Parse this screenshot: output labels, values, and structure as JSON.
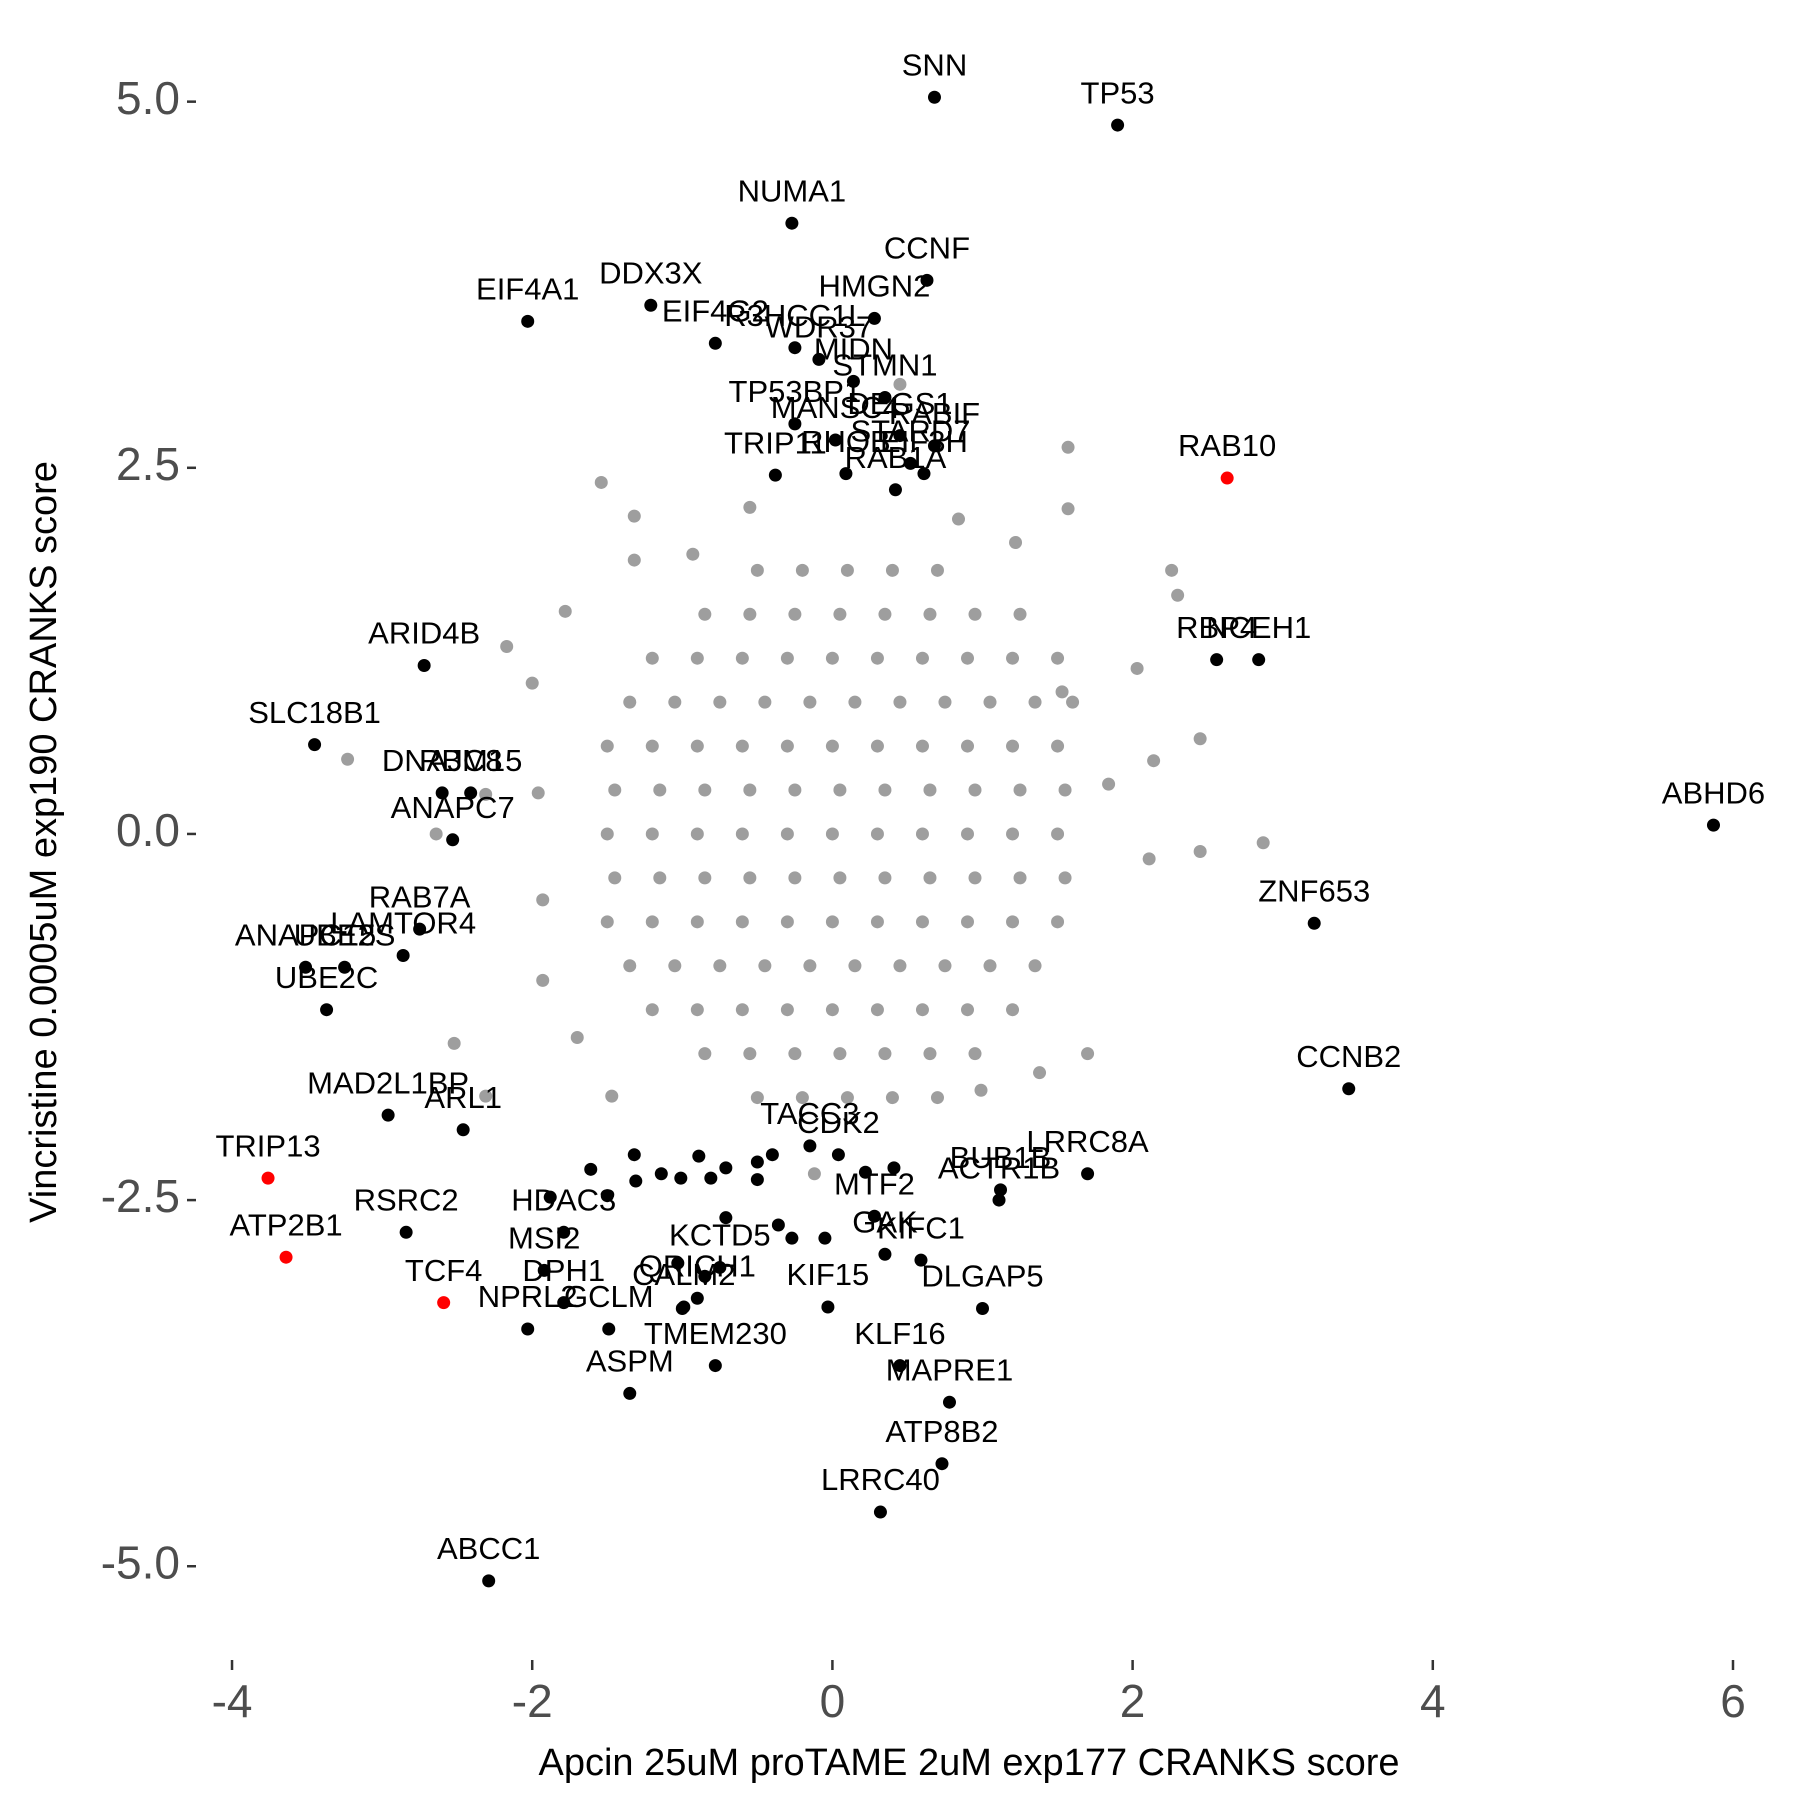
{
  "chart_data": {
    "type": "scatter",
    "x_label": "Apcin 25uM proTAME 2uM exp177 CRANKS score",
    "y_label": "Vincristine 0.0005uM exp190 CRANKS score",
    "xlim": [
      -4.24,
      6.06
    ],
    "ylim": [
      -5.49,
      5.38
    ],
    "xticks": [
      -4,
      -2,
      0,
      2,
      4,
      6
    ],
    "yticks": [
      {
        "value": -5,
        "label": "-5.0"
      },
      {
        "value": -2.5,
        "label": "-2.5"
      },
      {
        "value": 0,
        "label": "0.0"
      },
      {
        "value": 2.5,
        "label": "2.5"
      },
      {
        "value": 5,
        "label": "5.0"
      }
    ],
    "grid": false,
    "series": [
      {
        "color": "#9e9e9e",
        "x": [
          -0.5,
          -0.2,
          0.1,
          0.4,
          0.7,
          -0.85,
          -0.55,
          -0.25,
          0.05,
          0.35,
          0.65,
          0.95,
          1.25,
          -1.2,
          -0.9,
          -0.6,
          -0.3,
          0,
          0.3,
          0.6,
          0.9,
          1.2,
          1.5,
          -1.35,
          -1.05,
          -0.75,
          -0.45,
          -0.15,
          0.15,
          0.45,
          0.75,
          1.05,
          1.35,
          1.6,
          -1.5,
          -1.2,
          -0.9,
          -0.6,
          -0.3,
          0,
          0.3,
          0.6,
          0.9,
          1.2,
          1.5,
          -1.45,
          -1.15,
          -0.85,
          -0.55,
          -0.25,
          0.05,
          0.35,
          0.65,
          0.95,
          1.25,
          1.55,
          -1.5,
          -1.2,
          -0.9,
          -0.6,
          -0.3,
          0,
          0.3,
          0.6,
          0.9,
          1.2,
          1.5,
          -1.45,
          -1.15,
          -0.85,
          -0.55,
          -0.25,
          0.05,
          0.35,
          0.65,
          0.95,
          1.25,
          1.55,
          -1.5,
          -1.2,
          -0.9,
          -0.6,
          -0.3,
          0,
          0.3,
          0.6,
          0.9,
          1.2,
          1.5,
          -1.35,
          -1.05,
          -0.75,
          -0.45,
          -0.15,
          0.15,
          0.45,
          0.75,
          1.05,
          1.35,
          -1.2,
          -0.9,
          -0.6,
          -0.3,
          0,
          0.3,
          0.6,
          0.9,
          1.2,
          -0.85,
          -0.55,
          -0.25,
          0.05,
          0.35,
          0.65,
          0.95,
          -0.5,
          -0.2,
          0.1,
          0.4,
          0.7,
          -1.54,
          -1.32,
          -1.32,
          -1.78,
          -2.17,
          -2.0,
          -3.23,
          -1.96,
          -2.31,
          -2.64,
          -1.93,
          -2.52,
          -2.31,
          1.57,
          1.57,
          2.26,
          2.3,
          2.03,
          2.45,
          2.87,
          2.11,
          1.7,
          1.38,
          0.99,
          -0.12,
          -0.55,
          0.45,
          1.53,
          1.84,
          2.14,
          -1.93,
          -1.7,
          -1.47,
          1.22,
          0.84,
          -0.93,
          2.45
        ],
        "values": [
          1.8,
          1.8,
          1.8,
          1.8,
          1.8,
          1.5,
          1.5,
          1.5,
          1.5,
          1.5,
          1.5,
          1.5,
          1.5,
          1.2,
          1.2,
          1.2,
          1.2,
          1.2,
          1.2,
          1.2,
          1.2,
          1.2,
          1.2,
          0.9,
          0.9,
          0.9,
          0.9,
          0.9,
          0.9,
          0.9,
          0.9,
          0.9,
          0.9,
          0.9,
          0.6,
          0.6,
          0.6,
          0.6,
          0.6,
          0.6,
          0.6,
          0.6,
          0.6,
          0.6,
          0.6,
          0.3,
          0.3,
          0.3,
          0.3,
          0.3,
          0.3,
          0.3,
          0.3,
          0.3,
          0.3,
          0.3,
          0,
          0,
          0,
          0,
          0,
          0,
          0,
          0,
          0,
          0,
          0,
          -0.3,
          -0.3,
          -0.3,
          -0.3,
          -0.3,
          -0.3,
          -0.3,
          -0.3,
          -0.3,
          -0.3,
          -0.3,
          -0.6,
          -0.6,
          -0.6,
          -0.6,
          -0.6,
          -0.6,
          -0.6,
          -0.6,
          -0.6,
          -0.6,
          -0.6,
          -0.9,
          -0.9,
          -0.9,
          -0.9,
          -0.9,
          -0.9,
          -0.9,
          -0.9,
          -0.9,
          -0.9,
          -1.2,
          -1.2,
          -1.2,
          -1.2,
          -1.2,
          -1.2,
          -1.2,
          -1.2,
          -1.2,
          -1.5,
          -1.5,
          -1.5,
          -1.5,
          -1.5,
          -1.5,
          -1.5,
          -1.8,
          -1.8,
          -1.8,
          -1.8,
          -1.8,
          2.4,
          2.17,
          1.87,
          1.52,
          1.28,
          1.03,
          0.51,
          0.28,
          0.27,
          0,
          -1.0,
          -1.43,
          -1.79,
          2.64,
          2.22,
          1.8,
          1.63,
          1.13,
          -0.12,
          -0.06,
          -0.17,
          -1.5,
          -1.63,
          -1.75,
          -2.32,
          2.23,
          3.07,
          0.97,
          0.34,
          0.5,
          -0.45,
          -1.39,
          -1.79,
          1.99,
          2.15,
          1.91,
          0.65
        ]
      },
      {
        "color": "#000000",
        "x": [
          0.68,
          1.9,
          -0.27,
          0.63,
          -1.21,
          -2.03,
          0.28,
          -0.25,
          -0.78,
          -0.09,
          0.14,
          0.35,
          -0.25,
          0.02,
          0.45,
          0.68,
          -0.38,
          0.09,
          0.61,
          0.52,
          0.42,
          2.84,
          2.56,
          -2.72,
          -3.45,
          -2.6,
          -2.41,
          -2.53,
          5.87,
          3.21,
          -2.75,
          -2.86,
          -3.51,
          -3.25,
          -3.37,
          3.44,
          -2.96,
          -2.46,
          0.04,
          -0.15,
          1.12,
          1.7,
          1.11,
          -2.84,
          0.28,
          -1.92,
          -1.79,
          -0.75,
          0.35,
          0.59,
          -1.79,
          1.0,
          -0.03,
          -0.99,
          -2.03,
          -1.49,
          -0.9,
          -0.78,
          -1.35,
          0.45,
          0.78,
          0.73,
          0.32,
          -2.29,
          -1.61,
          -1.32,
          -1.31,
          -1.14,
          -1.01,
          -0.89,
          -0.81,
          -0.71,
          -0.5,
          -0.5,
          -0.4,
          0.22,
          0.41,
          -1.88,
          -1.5,
          -0.71,
          -0.36,
          -0.27,
          -0.05,
          -1.03,
          -0.85,
          -1.0
        ],
        "values": [
          5.03,
          4.84,
          4.17,
          3.78,
          3.61,
          3.5,
          3.52,
          3.32,
          3.35,
          3.24,
          3.09,
          2.98,
          2.8,
          2.69,
          2.72,
          2.65,
          2.45,
          2.46,
          2.46,
          2.53,
          2.35,
          1.19,
          1.19,
          1.15,
          0.61,
          0.28,
          0.28,
          -0.04,
          0.06,
          -0.61,
          -0.65,
          -0.83,
          -0.91,
          -0.91,
          -1.2,
          -1.74,
          -1.92,
          -2.02,
          -2.19,
          -2.13,
          -2.43,
          -2.32,
          -2.5,
          -2.72,
          -2.61,
          -2.98,
          -2.72,
          -2.96,
          -2.87,
          -2.91,
          -3.2,
          -3.24,
          -3.23,
          -3.23,
          -3.38,
          -3.38,
          -3.17,
          -3.63,
          -3.82,
          -3.63,
          -3.88,
          -4.3,
          -4.63,
          -5.1,
          -2.29,
          -2.19,
          -2.37,
          -2.32,
          -2.35,
          -2.2,
          -2.35,
          -2.28,
          -2.24,
          -2.36,
          -2.19,
          -2.31,
          -2.28,
          -2.48,
          -2.47,
          -2.62,
          -2.67,
          -2.76,
          -2.76,
          -2.93,
          -3.02,
          -3.24
        ],
        "labels": [
          "SNN",
          "TP53",
          "NUMA1",
          "CCNF",
          "DDX3X",
          "EIF4A1",
          "HMGN2",
          "R3HCC1L",
          "EIF4G2",
          "WDR37",
          "MIDN",
          "STMN1",
          "TP53BP1",
          "MANSC4",
          "DEGS1",
          "RABIF",
          "TRIP11",
          "RHOB",
          "EIF3H",
          "STARD7",
          "RAB1A",
          "NCEH1",
          "RBP4",
          "ARID4B",
          "SLC18B1",
          "DNAJC8",
          "RBM15",
          "ANAPC7",
          "ABHD6",
          "ZNF653",
          "RAB7A",
          "LAMTOR4",
          "ANAPC15",
          "UBE2S",
          "UBE2C",
          "CCNB2",
          "MAD2L1BP",
          "ARL1",
          "CDK2",
          "TACC3",
          "BUB1B",
          "LRRC8A",
          "ACTR1B",
          "RSRC2",
          "MTF2",
          "MSI2",
          "HDAC3",
          "KCTD5",
          "GAK",
          "KIFC1",
          "DPH1",
          "DLGAP5",
          "KIF15",
          "CALM2",
          "NPRL2",
          "GCLM",
          "QRICH1",
          "TMEM230",
          "ASPM",
          "KLF16",
          "MAPRE1",
          "ATP8B2",
          "LRRC40",
          "ABCC1",
          null,
          null,
          null,
          null,
          null,
          null,
          null,
          null,
          null,
          null,
          null,
          null,
          null,
          null,
          null,
          null,
          null,
          null,
          null,
          null,
          null,
          null
        ]
      },
      {
        "color": "#ff0000",
        "x": [
          2.63,
          -3.76,
          -3.64,
          -2.59
        ],
        "values": [
          2.43,
          -2.35,
          -2.89,
          -3.2
        ],
        "labels": [
          "RAB10",
          "TRIP13",
          "ATP2B1",
          "TCF4"
        ]
      }
    ]
  }
}
